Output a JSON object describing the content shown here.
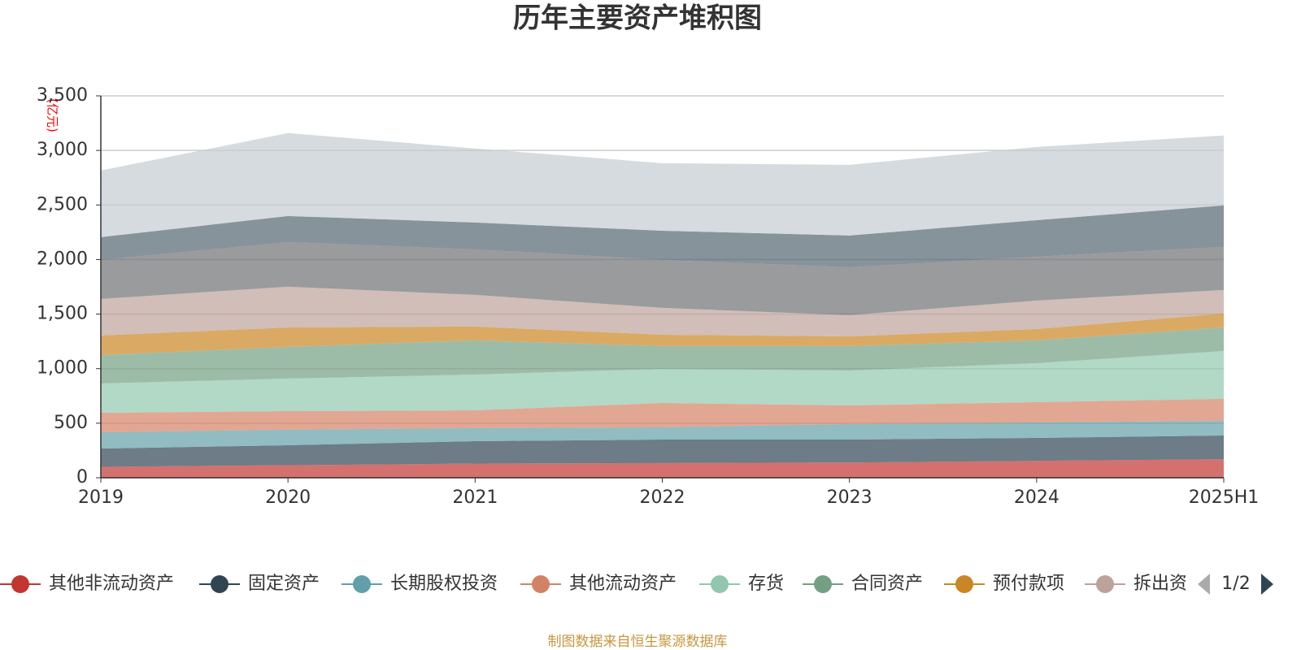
{
  "chart_data": {
    "type": "stacked-area",
    "title": "历年主要资产堆积图",
    "y_label": "(亿元)",
    "source": "制图数据来自恒生聚源数据库",
    "legend_page": "1/2",
    "categories": [
      "2019",
      "2020",
      "2021",
      "2022",
      "2023",
      "2024",
      "2025H1"
    ],
    "ylim": [
      0,
      3500
    ],
    "yticks": [
      0,
      500,
      {
        "value": 1000,
        "label": "1,000"
      },
      {
        "value": 1500,
        "label": "1,500"
      },
      {
        "value": 2000,
        "label": "2,000"
      },
      {
        "value": 2500,
        "label": "2,500"
      },
      {
        "value": 3000,
        "label": "3,000"
      },
      {
        "value": 3500,
        "label": "3,500"
      }
    ],
    "grid": true,
    "series": [
      {
        "name": "其他非流动资产",
        "color": "#c23531",
        "values": [
          100,
          115,
          130,
          135,
          140,
          155,
          170
        ]
      },
      {
        "name": "固定资产",
        "color": "#2f4554",
        "values": [
          168,
          183,
          205,
          215,
          210,
          210,
          217
        ]
      },
      {
        "name": "长期股权投资",
        "color": "#61a0a8",
        "values": [
          149,
          142,
          120,
          112,
          142,
          142,
          134
        ]
      },
      {
        "name": "其他流动资产",
        "color": "#d48265",
        "values": [
          179,
          171,
          163,
          223,
          171,
          186,
          202
        ]
      },
      {
        "name": "存货",
        "color": "#91c7ae",
        "values": [
          268,
          298,
          328,
          313,
          320,
          357,
          439
        ]
      },
      {
        "name": "合同资产",
        "color": "#749f83",
        "values": [
          261,
          291,
          313,
          209,
          224,
          209,
          216
        ]
      },
      {
        "name": "预付款项",
        "color": "#ca8622",
        "values": [
          179,
          178,
          127,
          104,
          89,
          104,
          127
        ]
      },
      {
        "name": "拆出资金",
        "color": "#bda29a",
        "values": [
          335,
          373,
          290,
          246,
          194,
          261,
          216
        ]
      },
      {
        "color": "#6e7074",
        "values": [
          357,
          409,
          417,
          439,
          439,
          402,
          395
        ]
      },
      {
        "color": "#546570",
        "values": [
          209,
          239,
          246,
          268,
          291,
          335,
          380
        ]
      },
      {
        "color": "#c4ccd3",
        "values": [
          611,
          760,
          679,
          619,
          648,
          671,
          641
        ]
      }
    ]
  }
}
